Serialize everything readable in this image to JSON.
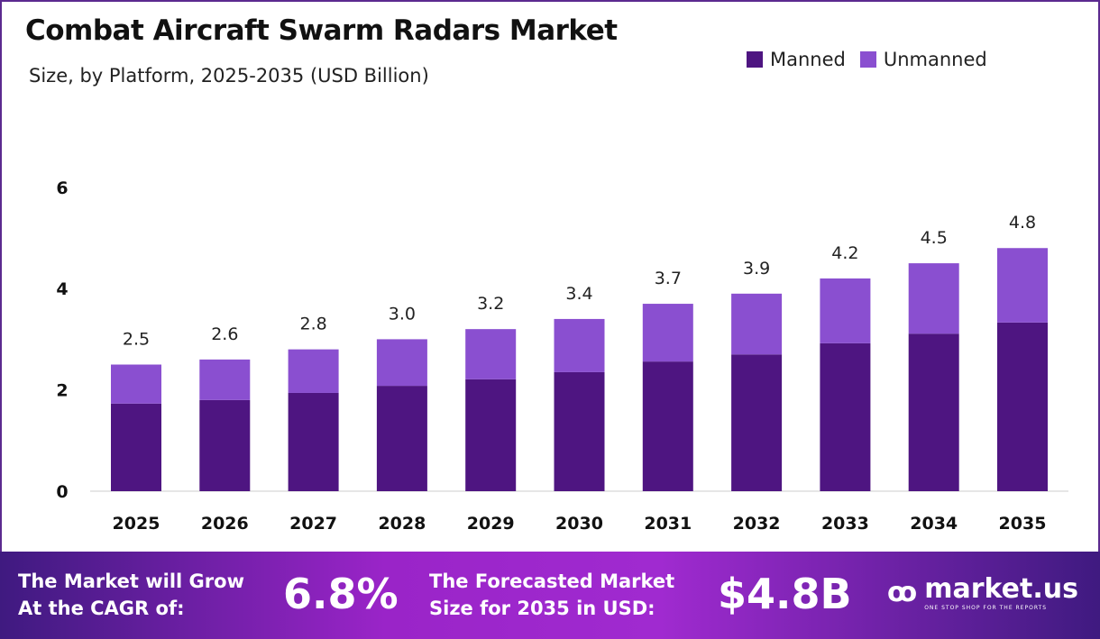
{
  "header": {
    "title": "Combat Aircraft Swarm Radars Market",
    "subtitle": "Size, by Platform, 2025-2035 (USD Billion)"
  },
  "legend": [
    {
      "label": "Manned",
      "color": "#4e1581"
    },
    {
      "label": "Unmanned",
      "color": "#8a4fd0"
    }
  ],
  "chart_data": {
    "type": "bar",
    "stacked": true,
    "categories": [
      "2025",
      "2026",
      "2027",
      "2028",
      "2029",
      "2030",
      "2031",
      "2032",
      "2033",
      "2034",
      "2035"
    ],
    "series": [
      {
        "name": "Manned",
        "color": "#4e1581",
        "values": [
          1.73,
          1.8,
          1.94,
          2.08,
          2.21,
          2.35,
          2.56,
          2.7,
          2.92,
          3.11,
          3.33
        ]
      },
      {
        "name": "Unmanned",
        "color": "#8a4fd0",
        "values": [
          0.77,
          0.8,
          0.86,
          0.92,
          0.99,
          1.05,
          1.14,
          1.2,
          1.28,
          1.39,
          1.47
        ]
      }
    ],
    "totals": [
      "2.5",
      "2.6",
      "2.8",
      "3.0",
      "3.2",
      "3.4",
      "3.7",
      "3.9",
      "4.2",
      "4.5",
      "4.8"
    ],
    "yticks": [
      "0",
      "2",
      "4",
      "6"
    ],
    "ylim": [
      0,
      6
    ],
    "grid": false,
    "legend_position": "top-right"
  },
  "banner": {
    "cagr_label_1": "The Market will Grow",
    "cagr_label_2": "At the CAGR of:",
    "cagr_value": "6.8%",
    "forecast_label_1": "The Forecasted Market",
    "forecast_label_2": "Size for 2035 in USD:",
    "forecast_value": "$4.8B",
    "logo_name": "market.us",
    "logo_tagline": "ONE STOP SHOP FOR THE REPORTS"
  }
}
